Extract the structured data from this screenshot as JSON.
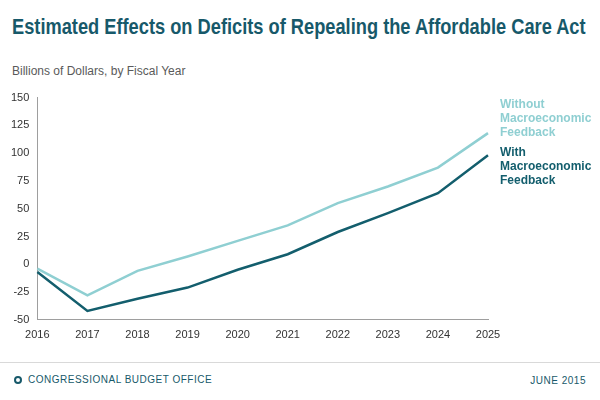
{
  "chart_data": {
    "type": "line",
    "title": "Estimated Effects on Deficits of Repealing the Affordable Care Act",
    "subtitle": "Billions of Dollars, by Fiscal Year",
    "categories": [
      "2016",
      "2017",
      "2018",
      "2019",
      "2020",
      "2021",
      "2022",
      "2023",
      "2024",
      "2025"
    ],
    "series": [
      {
        "name": "Without Macroeconomic Feedback",
        "color": "#8fcfd2",
        "values": [
          -4,
          -28,
          -6,
          7,
          21,
          35,
          55,
          70,
          87,
          118
        ]
      },
      {
        "name": "With Macroeconomic Feedback",
        "color": "#135e6d",
        "values": [
          -7,
          -42,
          -31,
          -21,
          -5,
          9,
          29,
          46,
          64,
          98
        ]
      }
    ],
    "ylim": [
      -50,
      150
    ],
    "yticks": [
      -50,
      -25,
      0,
      25,
      50,
      75,
      100,
      125,
      150
    ],
    "grid": false,
    "source": "CONGRESSIONAL BUDGET OFFICE",
    "date": "JUNE 2015"
  }
}
